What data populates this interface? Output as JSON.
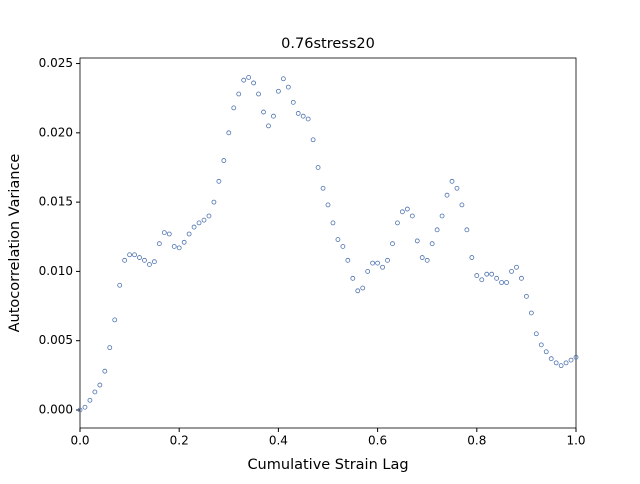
{
  "chart_data": {
    "type": "scatter",
    "title": "0.76stress20",
    "x_label": "Cumulative Strain Lag",
    "y_label": "Autocorrelation Variance",
    "x": [
      0,
      0.01,
      0.02,
      0.03,
      0.04,
      0.05,
      0.06,
      0.07,
      0.08,
      0.09,
      0.1,
      0.11,
      0.12,
      0.13,
      0.14,
      0.15,
      0.16,
      0.17,
      0.18,
      0.19,
      0.2,
      0.21,
      0.22,
      0.23,
      0.24,
      0.25,
      0.26,
      0.27,
      0.28,
      0.29,
      0.3,
      0.31,
      0.32,
      0.33,
      0.34,
      0.35,
      0.36,
      0.37,
      0.38,
      0.39,
      0.4,
      0.41,
      0.42,
      0.43,
      0.44,
      0.45,
      0.46,
      0.47,
      0.48,
      0.49,
      0.5,
      0.51,
      0.52,
      0.53,
      0.54,
      0.55,
      0.56,
      0.57,
      0.58,
      0.59,
      0.6,
      0.61,
      0.62,
      0.63,
      0.64,
      0.65,
      0.66,
      0.67,
      0.68,
      0.69,
      0.7,
      0.71,
      0.72,
      0.73,
      0.74,
      0.75,
      0.76,
      0.77,
      0.78,
      0.79,
      0.8,
      0.81,
      0.82,
      0.83,
      0.84,
      0.85,
      0.86,
      0.87,
      0.88,
      0.89,
      0.9,
      0.91,
      0.92,
      0.93,
      0.94,
      0.95,
      0.96,
      0.97,
      0.98,
      0.99,
      1
    ],
    "values": [
      0,
      0.0002,
      0.0007,
      0.0013,
      0.0018,
      0.0028,
      0.0045,
      0.0065,
      0.009,
      0.0108,
      0.0112,
      0.0112,
      0.011,
      0.0108,
      0.0105,
      0.0107,
      0.012,
      0.0128,
      0.0127,
      0.0118,
      0.0117,
      0.0121,
      0.0127,
      0.0132,
      0.0135,
      0.0137,
      0.014,
      0.015,
      0.0165,
      0.018,
      0.02,
      0.0218,
      0.0228,
      0.0238,
      0.024,
      0.0236,
      0.0228,
      0.0215,
      0.0205,
      0.0212,
      0.023,
      0.0239,
      0.0233,
      0.0222,
      0.0214,
      0.0212,
      0.021,
      0.0195,
      0.0175,
      0.016,
      0.0148,
      0.0135,
      0.0123,
      0.0118,
      0.0108,
      0.0095,
      0.0086,
      0.0088,
      0.01,
      0.0106,
      0.0106,
      0.0103,
      0.0108,
      0.012,
      0.0135,
      0.0143,
      0.0145,
      0.014,
      0.0122,
      0.011,
      0.0108,
      0.012,
      0.013,
      0.014,
      0.0155,
      0.0165,
      0.016,
      0.0148,
      0.013,
      0.011,
      0.0097,
      0.0094,
      0.0098,
      0.0098,
      0.0095,
      0.0092,
      0.0092,
      0.01,
      0.0103,
      0.0095,
      0.0082,
      0.007,
      0.0055,
      0.0047,
      0.0042,
      0.0037,
      0.0034,
      0.0032,
      0.0034,
      0.0036,
      0.0038
    ],
    "color": "#4c72b0",
    "xlim": [
      0,
      1
    ],
    "ylim": [
      -0.0013,
      0.0254
    ],
    "xticks": [
      {
        "value": 0,
        "label": "0.0"
      },
      0.2,
      0.4,
      0.6,
      0.8,
      {
        "value": 1,
        "label": "1.0"
      }
    ],
    "yticks": [
      {
        "value": 0,
        "label": "0.000"
      },
      {
        "value": 0.005,
        "label": "0.005"
      },
      {
        "value": 0.01,
        "label": "0.010"
      },
      {
        "value": 0.015,
        "label": "0.015"
      },
      {
        "value": 0.02,
        "label": "0.020"
      },
      {
        "value": 0.025,
        "label": "0.025"
      }
    ],
    "grid": false
  }
}
